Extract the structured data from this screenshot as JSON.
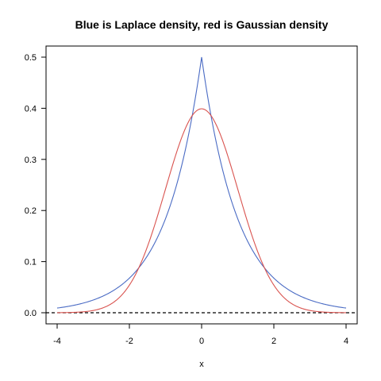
{
  "chart_data": {
    "type": "line",
    "title": "Blue is Laplace density, red is Gaussian density",
    "xlabel": "x",
    "ylabel": "",
    "xlim": [
      -4,
      4
    ],
    "ylim": [
      0,
      0.5
    ],
    "xticks": [
      -4,
      -2,
      0,
      2,
      4
    ],
    "xtick_labels": [
      "-4",
      "-2",
      "0",
      "2",
      "4"
    ],
    "yticks": [
      0.0,
      0.1,
      0.2,
      0.3,
      0.4,
      0.5
    ],
    "ytick_labels": [
      "0.0",
      "0.1",
      "0.2",
      "0.3",
      "0.4",
      "0.5"
    ],
    "grid": false,
    "legend": "none",
    "reference_line": {
      "y": 0,
      "style": "dashed",
      "color": "#000000"
    },
    "x": [
      -4.0,
      -3.5,
      -3.0,
      -2.5,
      -2.0,
      -1.75,
      -1.5,
      -1.25,
      -1.0,
      -0.75,
      -0.5,
      -0.25,
      0.0,
      0.25,
      0.5,
      0.75,
      1.0,
      1.25,
      1.5,
      1.75,
      2.0,
      2.5,
      3.0,
      3.5,
      4.0
    ],
    "series": [
      {
        "color": "#4a6bc4",
        "values": [
          0.0092,
          0.0151,
          0.0249,
          0.041,
          0.0677,
          0.0869,
          0.1116,
          0.1433,
          0.1839,
          0.2362,
          0.3033,
          0.3894,
          0.5,
          0.3894,
          0.3033,
          0.2362,
          0.1839,
          0.1433,
          0.1116,
          0.0869,
          0.0677,
          0.041,
          0.0249,
          0.0151,
          0.0092
        ]
      },
      {
        "color": "#d9534f",
        "values": [
          0.0001,
          0.0009,
          0.0044,
          0.0175,
          0.054,
          0.0863,
          0.1295,
          0.1826,
          0.242,
          0.3011,
          0.3521,
          0.3867,
          0.3989,
          0.3867,
          0.3521,
          0.3011,
          0.242,
          0.1826,
          0.1295,
          0.0863,
          0.054,
          0.0175,
          0.0044,
          0.0009,
          0.0001
        ]
      }
    ]
  }
}
